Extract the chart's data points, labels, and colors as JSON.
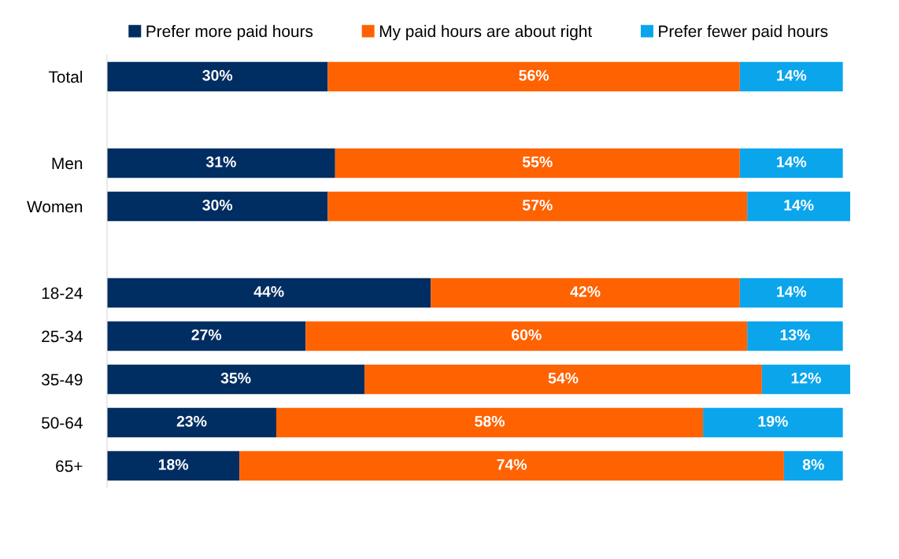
{
  "chart_data": {
    "type": "bar",
    "orientation": "horizontal",
    "stacked": true,
    "categories": [
      "Total",
      null,
      "Men",
      "Women",
      null,
      "18-24",
      "25-34",
      "35-49",
      "50-64",
      "65+"
    ],
    "series": [
      {
        "name": "Prefer more paid hours",
        "color": "#002d62",
        "values": [
          30,
          null,
          31,
          30,
          null,
          44,
          27,
          35,
          23,
          18
        ],
        "value_labels": [
          "30%",
          null,
          "31%",
          "30%",
          null,
          "44%",
          "27%",
          "35%",
          "23%",
          "18%"
        ]
      },
      {
        "name": "My paid hours are about right",
        "color": "#ff6200",
        "values": [
          56,
          null,
          55,
          57,
          null,
          42,
          60,
          54,
          58,
          74
        ],
        "value_labels": [
          "56%",
          null,
          "55%",
          "57%",
          null,
          "42%",
          "60%",
          "54%",
          "58%",
          "74%"
        ]
      },
      {
        "name": "Prefer fewer paid hours",
        "color": "#0ba5ec",
        "values": [
          14,
          null,
          14,
          14,
          null,
          14,
          13,
          12,
          19,
          8
        ],
        "value_labels": [
          "14%",
          null,
          "14%",
          "14%",
          null,
          "14%",
          "13%",
          "12%",
          "19%",
          "8%"
        ]
      }
    ],
    "xlim": [
      0,
      101
    ],
    "tick_labels": "y",
    "grid": false,
    "legend": "top"
  }
}
